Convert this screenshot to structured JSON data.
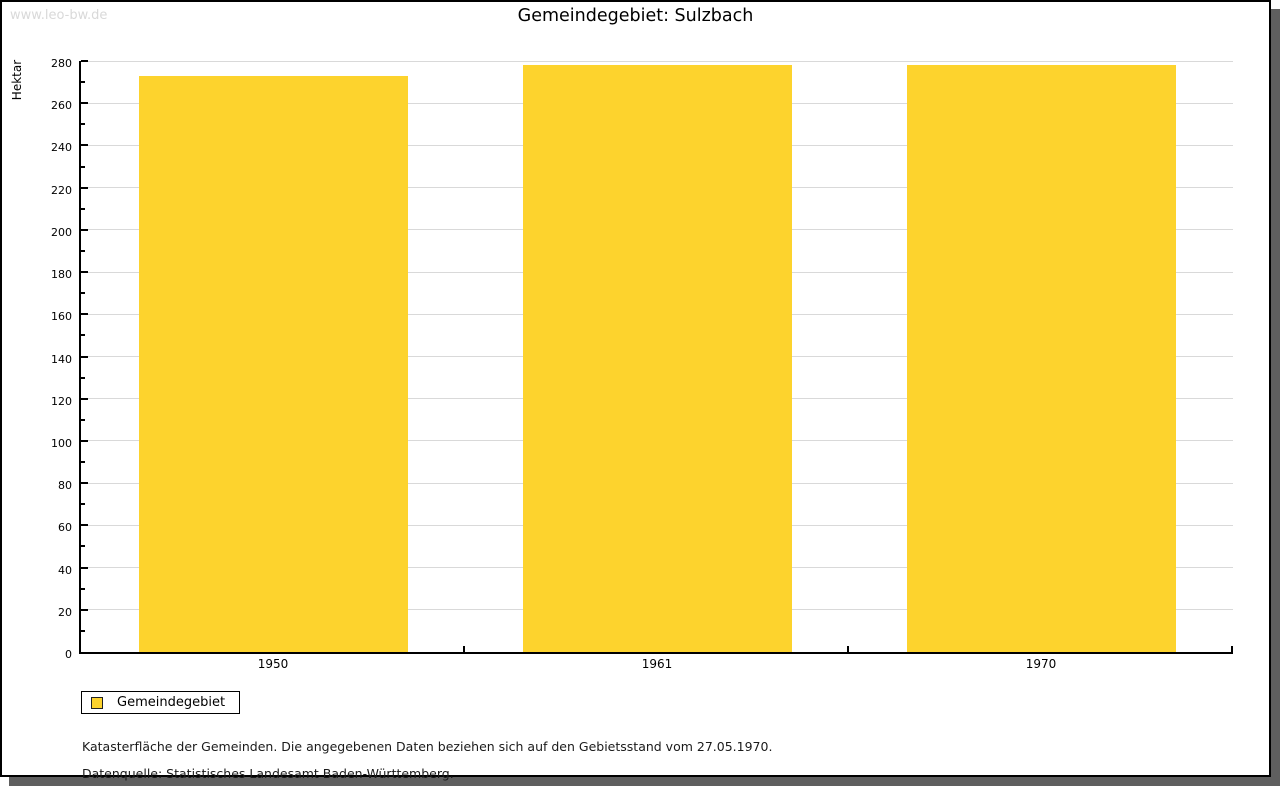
{
  "watermark": "www.leo-bw.de",
  "title": "Gemeindegebiet: Sulzbach",
  "chart_data": {
    "type": "bar",
    "title": "Gemeindegebiet: Sulzbach",
    "xlabel": "",
    "ylabel": "Hektar",
    "categories": [
      "1950",
      "1961",
      "1970"
    ],
    "series": [
      {
        "name": "Gemeindegebiet",
        "values": [
          273,
          278,
          278
        ],
        "color": "#FDD32D"
      }
    ],
    "ylim": [
      0,
      280
    ],
    "ytick_major": 20,
    "ytick_minor": 10,
    "grid": true,
    "gridline_color": "#d9d9d9",
    "legend_position": "bottom-left"
  },
  "legend": {
    "items": [
      {
        "label": "Gemeindegebiet",
        "color": "#FDD32D"
      }
    ]
  },
  "footer": {
    "note": "Katasterfläche der Gemeinden. Die angegebenen Daten beziehen sich auf den Gebietsstand vom 27.05.1970.",
    "source": "Datenquelle: Statistisches Landesamt Baden-Württemberg."
  }
}
